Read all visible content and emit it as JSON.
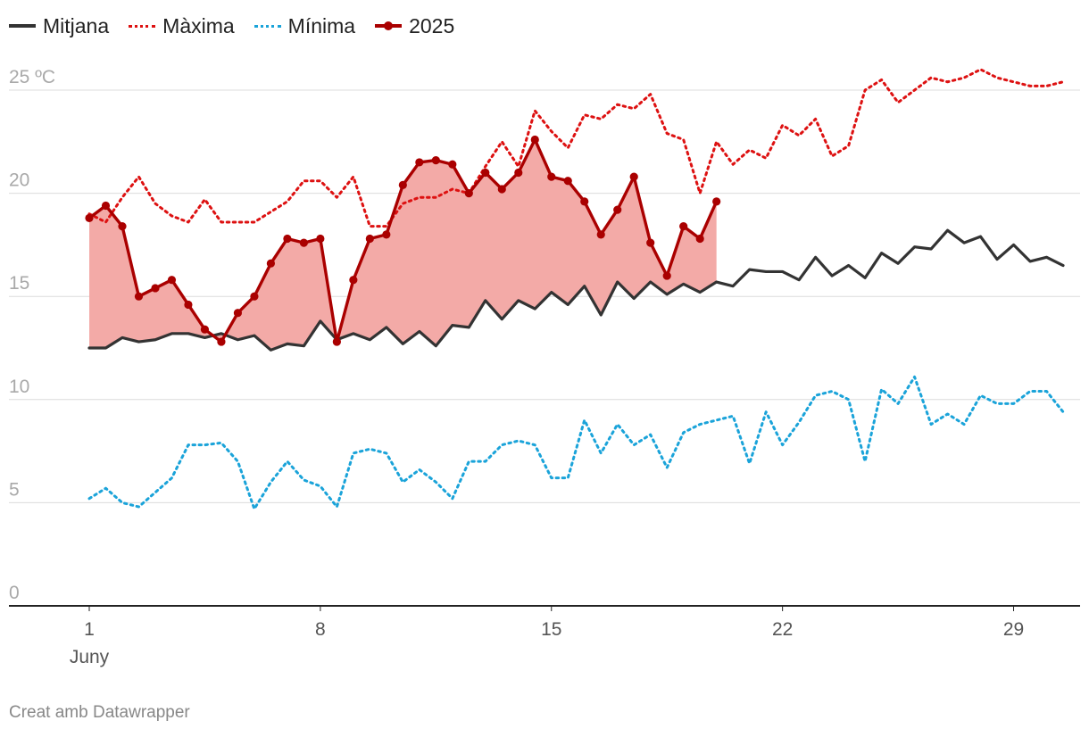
{
  "chart_data": {
    "type": "line",
    "unit": "°C",
    "y_axis": {
      "ticks": [
        0,
        5,
        10,
        15,
        20,
        25
      ],
      "tick_labels": [
        "0",
        "5",
        "10",
        "15",
        "20",
        "25 ºC"
      ],
      "ylim": [
        0,
        26
      ]
    },
    "x_axis": {
      "xlim": [
        1,
        30.5
      ],
      "ticks": [
        1,
        8,
        15,
        22,
        29
      ],
      "tick_labels": [
        "1",
        "8",
        "15",
        "22",
        "29"
      ],
      "sublabel": "Juny"
    },
    "colors": {
      "mitjana": "#333333",
      "maxima": "#dd1111",
      "minima": "#1aa3d9",
      "y2025": "#aa0000",
      "area": "#f3aaa7"
    },
    "series": [
      {
        "key": "mitjana",
        "name": "Mitjana",
        "style": "solid",
        "x": [
          1,
          1.5,
          2,
          2.5,
          3,
          3.5,
          4,
          4.5,
          5,
          5.5,
          6,
          6.5,
          7,
          7.5,
          8,
          8.5,
          9,
          9.5,
          10,
          10.5,
          11,
          11.5,
          12,
          12.5,
          13,
          13.5,
          14,
          14.5,
          15,
          15.5,
          16,
          16.5,
          17,
          17.5,
          18,
          18.5,
          19,
          19.5,
          20,
          20.5,
          21,
          21.5,
          22,
          22.5,
          23,
          23.5,
          24,
          24.5,
          25,
          25.5,
          26,
          26.5,
          27,
          27.5,
          28,
          28.5,
          29,
          29.5,
          30,
          30.5
        ],
        "values": [
          12.5,
          12.5,
          13.0,
          12.8,
          12.9,
          13.2,
          13.2,
          13.0,
          13.2,
          12.9,
          13.1,
          12.4,
          12.7,
          12.6,
          13.8,
          12.9,
          13.2,
          12.9,
          13.5,
          12.7,
          13.3,
          12.6,
          13.6,
          13.5,
          14.8,
          13.9,
          14.8,
          14.4,
          15.2,
          14.6,
          15.5,
          14.1,
          15.7,
          14.9,
          15.7,
          15.1,
          15.6,
          15.2,
          15.7,
          15.5,
          16.3,
          16.2,
          16.2,
          15.8,
          16.9,
          16.0,
          16.5,
          15.9,
          17.1,
          16.6,
          17.4,
          17.3,
          18.2,
          17.6,
          17.9,
          16.8,
          17.5,
          16.7,
          16.9,
          16.5
        ]
      },
      {
        "key": "maxima",
        "name": "Màxima",
        "style": "dotted",
        "x": [
          1,
          1.5,
          2,
          2.5,
          3,
          3.5,
          4,
          4.5,
          5,
          5.5,
          6,
          6.5,
          7,
          7.5,
          8,
          8.5,
          9,
          9.5,
          10,
          10.5,
          11,
          11.5,
          12,
          12.5,
          13,
          13.5,
          14,
          14.5,
          15,
          15.5,
          16,
          16.5,
          17,
          17.5,
          18,
          18.5,
          19,
          19.5,
          20,
          20.5,
          21,
          21.5,
          22,
          22.5,
          23,
          23.5,
          24,
          24.5,
          25,
          25.5,
          26,
          26.5,
          27,
          27.5,
          28,
          28.5,
          29,
          29.5,
          30,
          30.5
        ],
        "values": [
          19.0,
          18.6,
          19.8,
          20.8,
          19.5,
          18.9,
          18.6,
          19.7,
          18.6,
          18.6,
          18.6,
          19.1,
          19.6,
          20.6,
          20.6,
          19.8,
          20.8,
          18.4,
          18.4,
          19.5,
          19.8,
          19.8,
          20.2,
          20.0,
          21.3,
          22.5,
          21.3,
          24.0,
          23.0,
          22.2,
          23.8,
          23.6,
          24.3,
          24.1,
          24.8,
          22.9,
          22.6,
          20.0,
          22.5,
          21.4,
          22.1,
          21.7,
          23.3,
          22.8,
          23.6,
          21.8,
          22.3,
          25.0,
          25.5,
          24.4,
          25.0,
          25.6,
          25.4,
          25.6,
          26.0,
          25.6,
          25.4,
          25.2,
          25.2,
          25.4
        ]
      },
      {
        "key": "minima",
        "name": "Mínima",
        "style": "dotted",
        "x": [
          1,
          1.5,
          2,
          2.5,
          3,
          3.5,
          4,
          4.5,
          5,
          5.5,
          6,
          6.5,
          7,
          7.5,
          8,
          8.5,
          9,
          9.5,
          10,
          10.5,
          11,
          11.5,
          12,
          12.5,
          13,
          13.5,
          14,
          14.5,
          15,
          15.5,
          16,
          16.5,
          17,
          17.5,
          18,
          18.5,
          19,
          19.5,
          20,
          20.5,
          21,
          21.5,
          22,
          22.5,
          23,
          23.5,
          24,
          24.5,
          25,
          25.5,
          26,
          26.5,
          27,
          27.5,
          28,
          28.5,
          29,
          29.5,
          30,
          30.5
        ],
        "values": [
          5.2,
          5.7,
          5.0,
          4.8,
          5.5,
          6.2,
          7.8,
          7.8,
          7.9,
          7.0,
          4.7,
          6.0,
          7.0,
          6.1,
          5.8,
          4.8,
          7.4,
          7.6,
          7.4,
          6.0,
          6.6,
          6.0,
          5.2,
          7.0,
          7.0,
          7.8,
          8.0,
          7.8,
          6.2,
          6.2,
          9.0,
          7.4,
          8.8,
          7.8,
          8.3,
          6.7,
          8.4,
          8.8,
          9.0,
          9.2,
          6.9,
          9.4,
          7.8,
          8.9,
          10.2,
          10.4,
          10.0,
          7.0,
          10.5,
          9.8,
          11.1,
          8.8,
          9.3,
          8.8,
          10.2,
          9.8,
          9.8,
          10.4,
          10.4,
          9.4
        ]
      },
      {
        "key": "y2025",
        "name": "2025",
        "style": "solid-markers",
        "x": [
          1,
          1.5,
          2,
          2.5,
          3,
          3.5,
          4,
          4.5,
          5,
          5.5,
          6,
          6.5,
          7,
          7.5,
          8,
          8.5,
          9,
          9.5,
          10,
          10.5,
          11,
          11.5,
          12,
          12.5,
          13,
          13.5,
          14,
          14.5,
          15,
          15.5,
          16,
          16.5,
          17,
          17.5,
          18,
          18.5,
          19,
          19.5,
          20
        ],
        "values": [
          18.8,
          19.4,
          18.4,
          15.0,
          15.4,
          15.8,
          14.6,
          13.4,
          12.8,
          14.2,
          15.0,
          16.6,
          17.8,
          17.6,
          17.8,
          12.8,
          15.8,
          17.8,
          18.0,
          20.4,
          21.5,
          21.6,
          21.4,
          20.0,
          21.0,
          20.2,
          21.0,
          22.6,
          20.8,
          20.6,
          19.6,
          18.0,
          19.2,
          20.8,
          17.6,
          16.0,
          18.4,
          17.8,
          19.6
        ]
      }
    ]
  },
  "footer": {
    "credit": "Creat amb Datawrapper"
  }
}
